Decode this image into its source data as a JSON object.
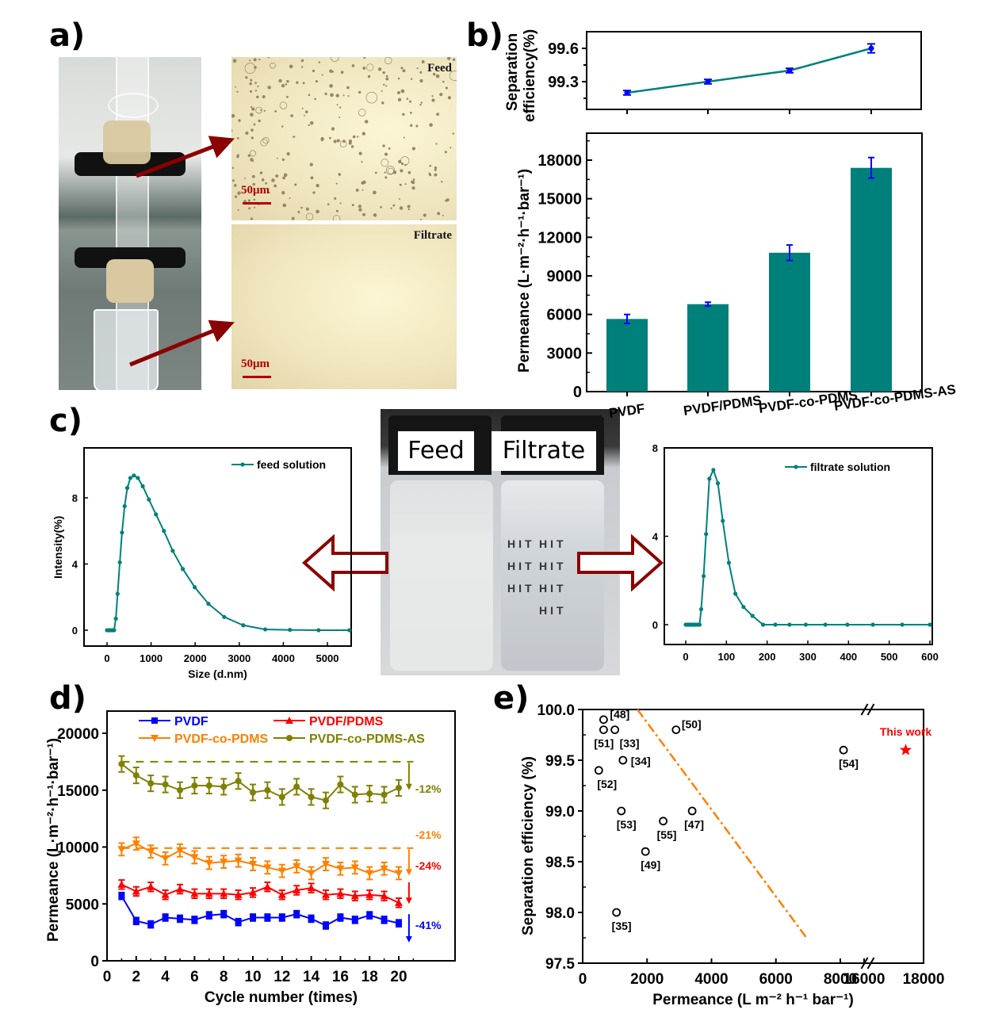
{
  "panels": {
    "a": "a)",
    "b": "b)",
    "c": "c)",
    "d": "d)",
    "e": "e)"
  },
  "panel_a": {
    "micro_top_label": "Feed",
    "micro_bottom_label": "Filtrate",
    "scale_bar_label": "50μm"
  },
  "panel_c_photo": {
    "left_label": "Feed",
    "right_label": "Filtrate",
    "bottle_text": "HIT"
  },
  "colors": {
    "teal": "#00807a",
    "blue": "#0000ff",
    "red": "#ff0000",
    "orange": "#ff8000",
    "olive": "#808000",
    "dark_red": "#8b0000"
  },
  "chart_data": [
    {
      "id": "b-top",
      "type": "line",
      "title": "",
      "ylabel_line1": "Separation",
      "ylabel_line2": "efficiency(%)",
      "categories": [
        "PVDF",
        "PVDF/PDMS",
        "PVDF-co-PDMS",
        "PVDF-co-PDMS-AS"
      ],
      "values": [
        99.2,
        99.3,
        99.4,
        99.6
      ],
      "errors": [
        0.02,
        0.02,
        0.02,
        0.04
      ],
      "yticks": [
        "99.3",
        "99.6"
      ],
      "ylim": [
        99.0,
        99.75
      ]
    },
    {
      "id": "b-bottom",
      "type": "bar",
      "ylabel": "Permeance (L·m⁻²·h⁻¹·bar⁻¹)",
      "categories": [
        "PVDF",
        "PVDF/PDMS",
        "PVDF-co-PDMS",
        "PVDF-co-PDMS-AS"
      ],
      "values": [
        5650,
        6800,
        10800,
        17400
      ],
      "errors": [
        350,
        150,
        600,
        800
      ],
      "yticks": [
        "0",
        "3000",
        "6000",
        "9000",
        "12000",
        "15000",
        "18000"
      ],
      "ylim": [
        0,
        19800
      ]
    },
    {
      "id": "c-left",
      "type": "line",
      "legend": "feed solution",
      "legend_position": "top-right",
      "xlabel": "Size (d.nm)",
      "ylabel": "Intensity(%)",
      "xticks": [
        "0",
        "1000",
        "2000",
        "3000",
        "4000",
        "5000"
      ],
      "yticks": [
        "0",
        "4",
        "8"
      ],
      "xlim": [
        -200,
        5500
      ],
      "ylim": [
        -1,
        10.5
      ],
      "x": [
        0,
        40,
        80,
        120,
        160,
        200,
        240,
        290,
        340,
        400,
        460,
        530,
        610,
        700,
        810,
        950,
        1110,
        1290,
        1490,
        1720,
        1990,
        2300,
        2660,
        3090,
        3590,
        4150,
        4800,
        5500
      ],
      "y": [
        0,
        0,
        0,
        0,
        0,
        0.7,
        2.2,
        4.1,
        5.9,
        7.5,
        8.6,
        9.2,
        9.35,
        9.2,
        8.7,
        7.9,
        7.0,
        6.0,
        4.8,
        3.7,
        2.6,
        1.6,
        0.8,
        0.3,
        0.05,
        0.02,
        0,
        0
      ]
    },
    {
      "id": "c-right",
      "type": "line",
      "legend": "filtrate solution",
      "legend_position": "top-right",
      "xlabel": "",
      "ylabel": "",
      "xticks": [
        "0",
        "100",
        "200",
        "300",
        "400",
        "500",
        "600"
      ],
      "yticks": [
        "0",
        "4",
        "8"
      ],
      "xlim": [
        -20,
        600
      ],
      "ylim": [
        -0.8,
        8
      ],
      "x": [
        0,
        4,
        8,
        12,
        16,
        20,
        25,
        30,
        34,
        38,
        44,
        50,
        58,
        68,
        79,
        91,
        106,
        122,
        142,
        164,
        190,
        220,
        255,
        295,
        343,
        397,
        460,
        532,
        600
      ],
      "y": [
        0,
        0,
        0,
        0,
        0,
        0,
        0,
        0,
        0,
        0.7,
        2.2,
        4.1,
        6.6,
        7.0,
        6.4,
        4.7,
        2.8,
        1.4,
        0.8,
        0.4,
        0,
        0,
        0,
        0,
        0,
        0,
        0,
        0,
        0
      ]
    },
    {
      "id": "d",
      "type": "line",
      "xlabel": "Cycle number (times)",
      "ylabel": "Permeance (L·m⁻²·h⁻¹·bar⁻¹)",
      "xticks": [
        "0",
        "2",
        "4",
        "6",
        "8",
        "10",
        "12",
        "14",
        "16",
        "18",
        "20"
      ],
      "yticks": [
        "0",
        "5000",
        "10000",
        "15000",
        "20000"
      ],
      "xlim": [
        0,
        22
      ],
      "ylim": [
        0,
        21800
      ],
      "x": [
        1,
        2,
        3,
        4,
        5,
        6,
        7,
        8,
        9,
        10,
        11,
        12,
        13,
        14,
        15,
        16,
        17,
        18,
        19,
        20
      ],
      "series": [
        {
          "name": "PVDF",
          "color": "#0000ff",
          "marker": "square",
          "values": [
            5700,
            3500,
            3200,
            3800,
            3700,
            3600,
            4000,
            4100,
            3400,
            3800,
            3800,
            3800,
            4100,
            3700,
            3100,
            3800,
            3600,
            4000,
            3600,
            3300
          ],
          "error": 300,
          "baseline": null,
          "drop_label": "-41%"
        },
        {
          "name": "PVDF/PDMS",
          "color": "#ff0000",
          "marker": "triangle-up",
          "values": [
            6700,
            6100,
            6500,
            5800,
            6300,
            5900,
            5900,
            5900,
            5800,
            6000,
            6500,
            5800,
            6200,
            6400,
            5800,
            5900,
            5700,
            5800,
            5700,
            5100
          ],
          "error": 400,
          "baseline": null,
          "drop_label": "-24%"
        },
        {
          "name": "PVDF-co-PDMS",
          "color": "#ff8000",
          "marker": "triangle-down",
          "values": [
            9800,
            10300,
            9600,
            9000,
            9700,
            9100,
            8600,
            8700,
            8800,
            8500,
            8200,
            7900,
            8300,
            7700,
            8500,
            8100,
            8200,
            7700,
            8100,
            7700
          ],
          "error": 550,
          "baseline": 9900,
          "drop_label": "-21%"
        },
        {
          "name": "PVDF-co-PDMS-AS",
          "color": "#808000",
          "marker": "circle",
          "values": [
            17300,
            16300,
            15600,
            15500,
            15000,
            15400,
            15400,
            15300,
            15800,
            14800,
            15000,
            14400,
            15300,
            14400,
            14100,
            15500,
            14600,
            14700,
            14600,
            15200
          ],
          "error": 700,
          "baseline": 17500,
          "drop_label": "-12%"
        }
      ]
    },
    {
      "id": "e",
      "type": "scatter",
      "xlabel": "Permeance (L m⁻² h⁻¹ bar⁻¹)",
      "ylabel": "Separation efficiency (%)",
      "yticks": [
        "97.5",
        "98.0",
        "98.5",
        "99.0",
        "99.5",
        "100.0"
      ],
      "xticks": [
        "0",
        "2000",
        "4000",
        "6000",
        "8000",
        "16000",
        "18000"
      ],
      "ylim": [
        97.5,
        100.0
      ],
      "x_break": [
        8800,
        15800
      ],
      "points": [
        {
          "label": "[48]",
          "x": 650,
          "y": 99.9
        },
        {
          "label": "[51]",
          "x": 650,
          "y": 99.8
        },
        {
          "label": "[33]",
          "x": 1000,
          "y": 99.8
        },
        {
          "label": "[50]",
          "x": 2900,
          "y": 99.8
        },
        {
          "label": "[34]",
          "x": 1250,
          "y": 99.5
        },
        {
          "label": "[52]",
          "x": 500,
          "y": 99.4
        },
        {
          "label": "[53]",
          "x": 1200,
          "y": 99.0
        },
        {
          "label": "[55]",
          "x": 2500,
          "y": 98.9
        },
        {
          "label": "[47]",
          "x": 3400,
          "y": 99.0
        },
        {
          "label": "[49]",
          "x": 1950,
          "y": 98.6
        },
        {
          "label": "[35]",
          "x": 1050,
          "y": 98.0
        },
        {
          "label": "[54]",
          "x": 8100,
          "y": 99.6
        }
      ],
      "highlight": {
        "label": "This work",
        "x": 17400,
        "y": 99.6,
        "color": "#ff0000",
        "marker": "star"
      },
      "trade_off_line": {
        "from": [
          1700,
          100.0
        ],
        "to": [
          6950,
          97.75
        ],
        "color": "#ff8000",
        "style": "dash-dot"
      }
    }
  ]
}
